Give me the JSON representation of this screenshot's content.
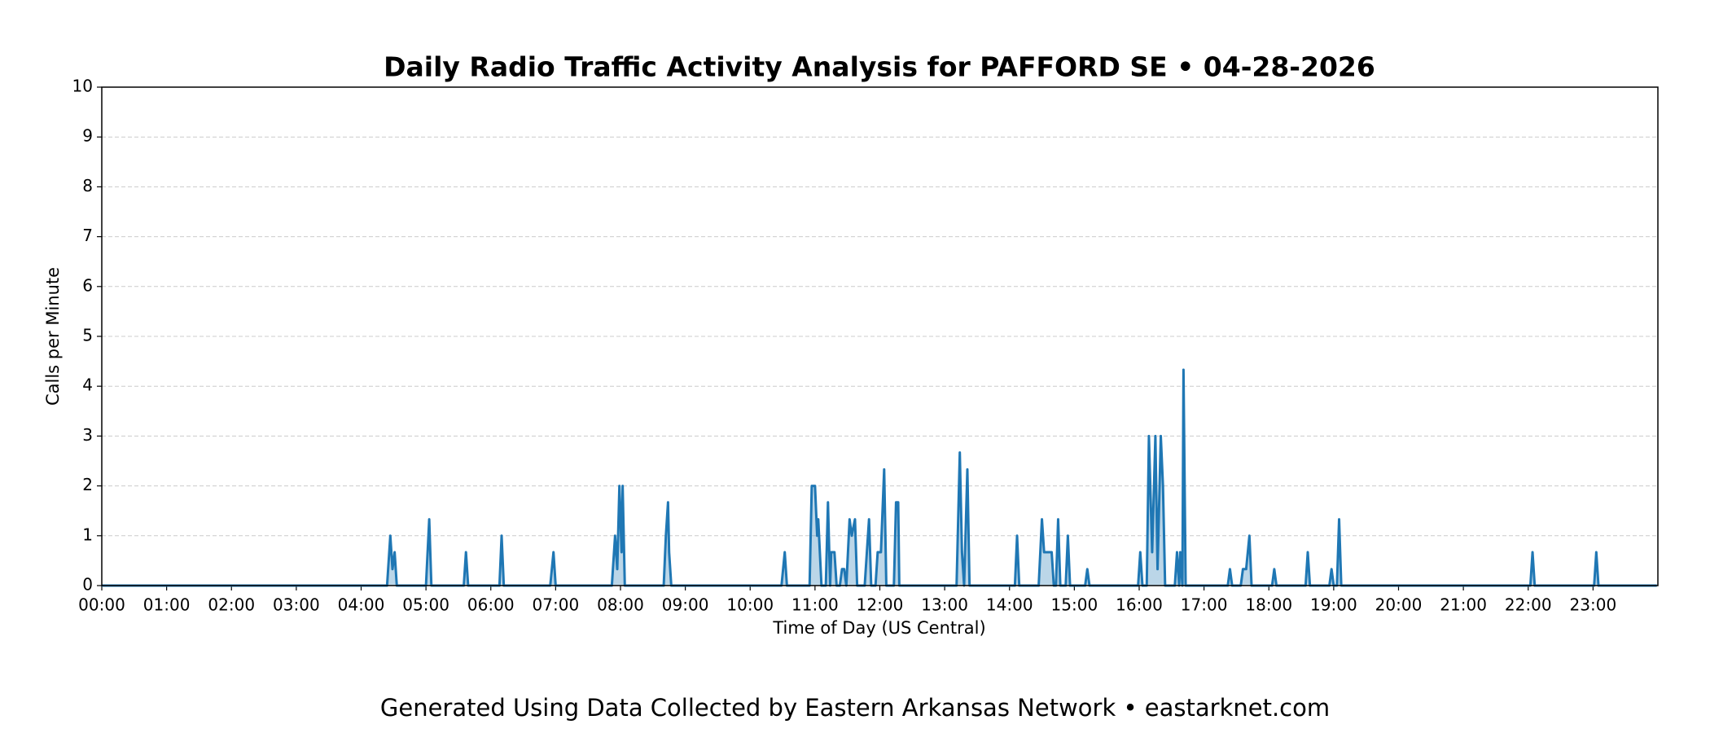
{
  "chart_data": {
    "type": "line",
    "title": "Daily Radio Traffic Activity Analysis for PAFFORD SE • 04-28-2026",
    "x_label": "Time of Day (US Central)",
    "y_label": "Calls per Minute",
    "footer": "Generated Using Data Collected by Eastern Arkansas Network • eastarknet.com",
    "color": "#1f77b4",
    "fill_color": "#1f77b4",
    "grid": true,
    "xlim": [
      0,
      1440
    ],
    "ylim": [
      0,
      10
    ],
    "yticks": [
      0,
      1,
      2,
      3,
      4,
      5,
      6,
      7,
      8,
      9,
      10
    ],
    "xticks": [
      {
        "value": 0,
        "label": "00:00"
      },
      {
        "value": 60,
        "label": "01:00"
      },
      {
        "value": 120,
        "label": "02:00"
      },
      {
        "value": 180,
        "label": "03:00"
      },
      {
        "value": 240,
        "label": "04:00"
      },
      {
        "value": 300,
        "label": "05:00"
      },
      {
        "value": 360,
        "label": "06:00"
      },
      {
        "value": 420,
        "label": "07:00"
      },
      {
        "value": 480,
        "label": "08:00"
      },
      {
        "value": 540,
        "label": "09:00"
      },
      {
        "value": 600,
        "label": "10:00"
      },
      {
        "value": 660,
        "label": "11:00"
      },
      {
        "value": 720,
        "label": "12:00"
      },
      {
        "value": 780,
        "label": "13:00"
      },
      {
        "value": 840,
        "label": "14:00"
      },
      {
        "value": 900,
        "label": "15:00"
      },
      {
        "value": 960,
        "label": "16:00"
      },
      {
        "value": 1020,
        "label": "17:00"
      },
      {
        "value": 1080,
        "label": "18:00"
      },
      {
        "value": 1140,
        "label": "19:00"
      },
      {
        "value": 1200,
        "label": "20:00"
      },
      {
        "value": 1260,
        "label": "21:00"
      },
      {
        "value": 1320,
        "label": "22:00"
      },
      {
        "value": 1380,
        "label": "23:00"
      }
    ],
    "x": [
      0,
      264,
      267,
      269,
      271,
      273,
      300,
      303,
      305,
      335,
      337,
      339,
      368,
      370,
      372,
      415,
      418,
      420,
      472,
      475,
      477,
      479,
      481,
      482,
      484,
      520,
      522,
      524,
      525,
      527,
      629,
      632,
      634,
      655,
      657,
      660,
      662,
      663,
      666,
      670,
      672,
      674,
      675,
      678,
      680,
      683,
      685,
      687,
      689,
      692,
      694,
      697,
      699,
      706,
      708,
      710,
      712,
      716,
      718,
      721,
      724,
      726,
      733,
      735,
      737,
      738,
      791,
      794,
      796,
      798,
      801,
      803,
      845,
      847,
      849,
      867,
      870,
      872,
      879,
      881,
      883,
      885,
      887,
      892,
      894,
      896,
      910,
      912,
      914,
      959,
      961,
      963,
      967,
      969,
      972,
      975,
      977,
      980,
      982,
      984,
      993,
      995,
      997,
      998,
      1000,
      1001,
      1003,
      1042,
      1044,
      1046,
      1054,
      1056,
      1059,
      1062,
      1064,
      1083,
      1085,
      1087,
      1114,
      1116,
      1118,
      1136,
      1138,
      1140,
      1143,
      1145,
      1147,
      1322,
      1324,
      1326,
      1381,
      1383,
      1385,
      1439
    ],
    "values": [
      0,
      0,
      1,
      0.33,
      0.67,
      0,
      0,
      1.33,
      0,
      0,
      0.67,
      0,
      0,
      1,
      0,
      0,
      0.67,
      0,
      0,
      1,
      0.33,
      2,
      0.67,
      2,
      0,
      0,
      1,
      1.67,
      0.67,
      0,
      0,
      0.67,
      0,
      0,
      2,
      2,
      1,
      1.33,
      0,
      0,
      1.67,
      0,
      0.67,
      0.67,
      0,
      0,
      0.33,
      0.33,
      0,
      1.33,
      1,
      1.33,
      0,
      0,
      0.67,
      1.33,
      0,
      0,
      0.67,
      0.67,
      2.33,
      0,
      0,
      1.67,
      1.67,
      0,
      0,
      2.67,
      0.67,
      0,
      2.33,
      0,
      0,
      1,
      0,
      0,
      1.33,
      0.67,
      0.67,
      0,
      0,
      1.33,
      0,
      0,
      1,
      0,
      0,
      0.33,
      0,
      0,
      0.67,
      0,
      0,
      3,
      0.67,
      3,
      0.33,
      3,
      2,
      0,
      0,
      0.67,
      0,
      0.67,
      0,
      4.33,
      0,
      0,
      0.33,
      0,
      0,
      0.33,
      0.33,
      1,
      0,
      0,
      0.33,
      0,
      0,
      0.67,
      0,
      0,
      0.33,
      0,
      0,
      1.33,
      0,
      0,
      0.67,
      0,
      0,
      0.67,
      0,
      0
    ]
  }
}
